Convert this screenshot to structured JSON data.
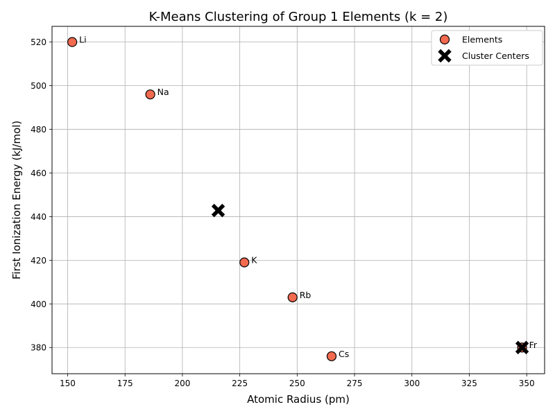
{
  "chart_data": {
    "type": "scatter",
    "title": "K-Means Clustering of Group 1 Elements (k = 2)",
    "xlabel": "Atomic Radius (pm)",
    "ylabel": "First Ionization Energy (kJ/mol)",
    "xlim": [
      143.2,
      357.8
    ],
    "ylim": [
      368.0,
      527.2
    ],
    "xticks": [
      150,
      175,
      200,
      225,
      250,
      275,
      300,
      325,
      350
    ],
    "yticks": [
      380,
      400,
      420,
      440,
      460,
      480,
      500,
      520
    ],
    "grid": true,
    "legend_position": "top-right",
    "series": [
      {
        "name": "Elements",
        "marker": "circle",
        "color": "#f26a4f",
        "points": [
          {
            "label": "Li",
            "x": 152,
            "y": 520
          },
          {
            "label": "Na",
            "x": 186,
            "y": 496
          },
          {
            "label": "K",
            "x": 227,
            "y": 419
          },
          {
            "label": "Rb",
            "x": 248,
            "y": 403
          },
          {
            "label": "Cs",
            "x": 265,
            "y": 376
          },
          {
            "label": "Fr",
            "x": 348,
            "y": 380
          }
        ]
      },
      {
        "name": "Cluster Centers",
        "marker": "X",
        "color": "#000000",
        "points": [
          {
            "x": 215.6,
            "y": 442.8
          },
          {
            "x": 348,
            "y": 380
          }
        ]
      }
    ]
  }
}
